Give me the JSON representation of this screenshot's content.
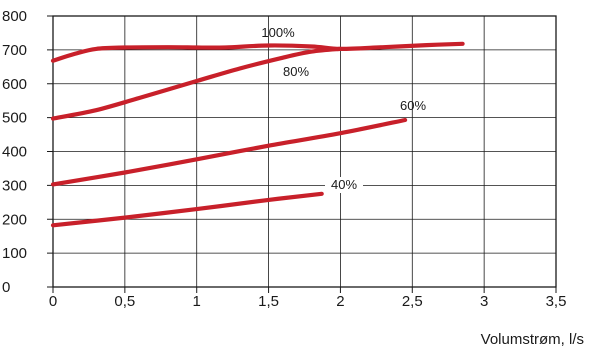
{
  "chart_data": {
    "type": "line",
    "xlabel": "Volumstrøm, l/s",
    "ylabel": "",
    "xlim": [
      0,
      3.5
    ],
    "ylim": [
      0,
      800
    ],
    "x_ticks": [
      0,
      0.5,
      1,
      1.5,
      2,
      2.5,
      3,
      3.5
    ],
    "x_tick_labels": [
      "0",
      "0,5",
      "1",
      "1,5",
      "2",
      "2,5",
      "3",
      "3,5"
    ],
    "y_ticks": [
      0,
      100,
      200,
      300,
      400,
      500,
      600,
      700,
      800
    ],
    "y_tick_labels": [
      "0",
      "100",
      "200",
      "300",
      "400",
      "500",
      "600",
      "700",
      "800"
    ],
    "grid": true,
    "line_color": "#c8202a",
    "series": [
      {
        "name": "100%",
        "x": [
          0,
          0.15,
          0.3,
          0.5,
          0.8,
          1.0,
          1.2,
          1.5,
          1.8,
          2.0,
          2.3,
          2.6,
          2.85
        ],
        "y": [
          668,
          688,
          703,
          707,
          708,
          707,
          707,
          713,
          710,
          703,
          708,
          714,
          718
        ]
      },
      {
        "name": "80%",
        "x": [
          0,
          0.3,
          0.6,
          1.0,
          1.3,
          1.6,
          1.8,
          2.0
        ],
        "y": [
          497,
          522,
          558,
          608,
          645,
          677,
          695,
          703
        ]
      },
      {
        "name": "60%",
        "x": [
          0,
          0.5,
          1.0,
          1.5,
          2.0,
          2.45
        ],
        "y": [
          303,
          338,
          377,
          417,
          454,
          493
        ]
      },
      {
        "name": "40%",
        "x": [
          0,
          0.5,
          1.0,
          1.5,
          1.87
        ],
        "y": [
          182,
          205,
          230,
          257,
          275
        ]
      }
    ]
  }
}
